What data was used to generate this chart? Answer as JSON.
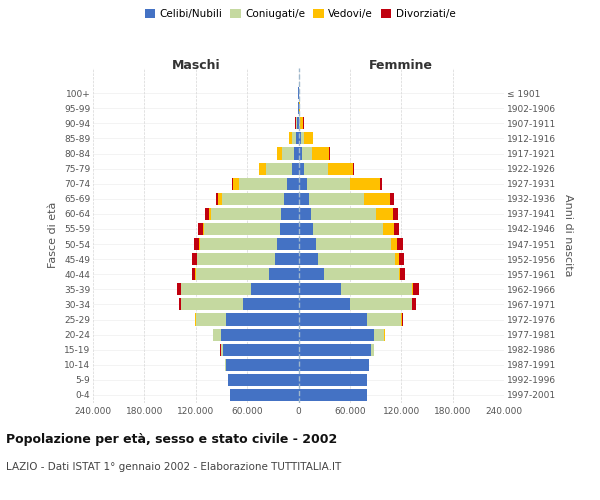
{
  "age_groups": [
    "0-4",
    "5-9",
    "10-14",
    "15-19",
    "20-24",
    "25-29",
    "30-34",
    "35-39",
    "40-44",
    "45-49",
    "50-54",
    "55-59",
    "60-64",
    "65-69",
    "70-74",
    "75-79",
    "80-84",
    "85-89",
    "90-94",
    "95-99",
    "100+"
  ],
  "birth_years": [
    "1997-2001",
    "1992-1996",
    "1987-1991",
    "1982-1986",
    "1977-1981",
    "1972-1976",
    "1967-1971",
    "1962-1966",
    "1957-1961",
    "1952-1956",
    "1947-1951",
    "1942-1946",
    "1937-1941",
    "1932-1936",
    "1927-1931",
    "1922-1926",
    "1917-1921",
    "1912-1916",
    "1907-1911",
    "1902-1906",
    "≤ 1901"
  ],
  "maschi": {
    "celibi": [
      80000,
      82000,
      85000,
      88000,
      90000,
      85000,
      65000,
      55000,
      35000,
      28000,
      25000,
      22000,
      20000,
      17000,
      14000,
      8000,
      5000,
      3000,
      1200,
      500,
      200
    ],
    "coniugati": [
      50,
      100,
      500,
      3000,
      10000,
      35000,
      72000,
      82000,
      85000,
      90000,
      90000,
      88000,
      82000,
      72000,
      55000,
      30000,
      14000,
      5000,
      1500,
      300,
      100
    ],
    "vedovi": [
      10,
      10,
      20,
      50,
      200,
      500,
      200,
      300,
      500,
      1000,
      1500,
      2000,
      3000,
      5000,
      8000,
      8000,
      6000,
      3000,
      800,
      200,
      50
    ],
    "divorziati": [
      10,
      10,
      20,
      50,
      200,
      500,
      2000,
      4500,
      4000,
      5000,
      6000,
      5000,
      4000,
      2000,
      1000,
      500,
      300,
      200,
      100,
      50,
      10
    ]
  },
  "femmine": {
    "nubili": [
      80000,
      80000,
      82000,
      85000,
      88000,
      80000,
      60000,
      50000,
      30000,
      23000,
      20000,
      17000,
      15000,
      12000,
      10000,
      6000,
      4000,
      2500,
      1000,
      400,
      200
    ],
    "coniugate": [
      50,
      100,
      500,
      3000,
      12000,
      40000,
      72000,
      83000,
      87000,
      90000,
      88000,
      82000,
      75000,
      65000,
      50000,
      28000,
      12000,
      4000,
      1200,
      250,
      100
    ],
    "vedove": [
      10,
      10,
      30,
      100,
      500,
      800,
      800,
      1200,
      2000,
      4000,
      7000,
      12000,
      20000,
      30000,
      35000,
      30000,
      20000,
      10000,
      3500,
      800,
      200
    ],
    "divorziate": [
      10,
      10,
      20,
      50,
      300,
      1000,
      4000,
      7000,
      5000,
      6000,
      7000,
      6000,
      6000,
      4000,
      2000,
      1000,
      500,
      300,
      150,
      50,
      10
    ]
  },
  "colors": {
    "celibi": "#4472c4",
    "coniugati": "#c5d9a0",
    "vedovi": "#ffc000",
    "divorziati": "#c0000f"
  },
  "xlim": 240000,
  "xticks": [
    -240000,
    -180000,
    -120000,
    -60000,
    0,
    60000,
    120000,
    180000,
    240000
  ],
  "xlabels": [
    "240.000",
    "180.000",
    "120.000",
    "60.000",
    "0",
    "60.000",
    "120.000",
    "180.000",
    "240.000"
  ],
  "title": "Popolazione per età, sesso e stato civile - 2002",
  "subtitle": "LAZIO - Dati ISTAT 1° gennaio 2002 - Elaborazione TUTTITALIA.IT",
  "ylabel_left": "Fasce di età",
  "ylabel_right": "Anni di nascita",
  "label_maschi": "Maschi",
  "label_femmine": "Femmine",
  "legend": [
    "Celibi/Nubili",
    "Coniugati/e",
    "Vedovi/e",
    "Divorziati/e"
  ],
  "background_color": "#ffffff",
  "grid_color": "#cccccc"
}
